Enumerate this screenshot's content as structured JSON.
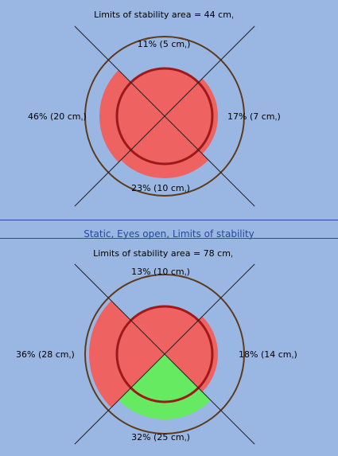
{
  "colors": {
    "background": "#9ab7e3",
    "outer_ring": "#5c3a1c",
    "inner_ring": "#9e1a1a",
    "sector_red": "#ee6262",
    "sector_green": "#66ea62",
    "divider": "#2c4f9c",
    "section_title": "#27489a"
  },
  "section_title": "Static, Eyes open, Limits of stability",
  "panels": [
    {
      "area_label": "Limits of stability area = 44 cmˌ",
      "top": "11% (5 cmˌ)",
      "right": "17% (7 cmˌ)",
      "bottom": "23% (10 cmˌ)",
      "left": "46% (20 cmˌ)",
      "quadrants": {
        "top": {
          "extent": 0.6,
          "color": "red"
        },
        "right": {
          "extent": 0.67,
          "color": "red"
        },
        "bottom": {
          "extent": 0.78,
          "color": "red"
        },
        "left": {
          "extent": 0.82,
          "color": "red"
        }
      }
    },
    {
      "area_label": "Limits of stability area = 78 cmˌ",
      "top": "13% (10 cmˌ)",
      "right": "18% (14 cmˌ)",
      "bottom": "32% (25 cmˌ)",
      "left": "36% (28 cmˌ)",
      "quadrants": {
        "top": {
          "extent": 0.6,
          "color": "red"
        },
        "right": {
          "extent": 0.67,
          "color": "red"
        },
        "bottom": {
          "extent": 0.82,
          "color": "green"
        },
        "left": {
          "extent": 0.95,
          "color": "red"
        }
      }
    }
  ]
}
